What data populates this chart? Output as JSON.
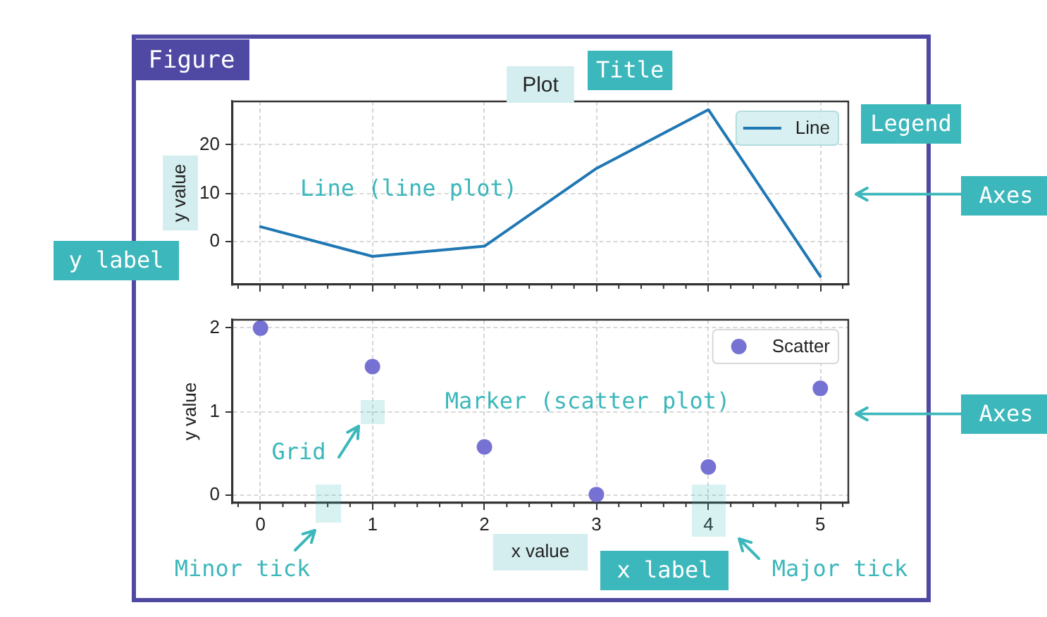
{
  "chart_data": [
    {
      "type": "line",
      "title": "Plot",
      "ylabel": "y value",
      "x": [
        0,
        1,
        2,
        3,
        4,
        5
      ],
      "series": [
        {
          "name": "Line",
          "color": "#1f77b4",
          "values": [
            3.1,
            -3.0,
            -0.9,
            15.1,
            27.2,
            -7.1
          ]
        }
      ],
      "xlim": [
        -0.25,
        5.25
      ],
      "ylim": [
        -8.8,
        28.9
      ],
      "xticks": [
        {
          "value": -0.2,
          "label": null
        },
        0,
        {
          "value": 0.2,
          "label": null
        },
        {
          "value": 0.4,
          "label": null
        },
        {
          "value": 0.6,
          "label": null
        },
        {
          "value": 0.8,
          "label": null
        },
        1,
        {
          "value": 1.2,
          "label": null
        },
        {
          "value": 1.4,
          "label": null
        },
        {
          "value": 1.6,
          "label": null
        },
        {
          "value": 1.8,
          "label": null
        },
        2,
        {
          "value": 2.2,
          "label": null
        },
        {
          "value": 2.4,
          "label": null
        },
        {
          "value": 2.6,
          "label": null
        },
        {
          "value": 2.8,
          "label": null
        },
        3,
        {
          "value": 3.2,
          "label": null
        },
        {
          "value": 3.4,
          "label": null
        },
        {
          "value": 3.6,
          "label": null
        },
        {
          "value": 3.8,
          "label": null
        },
        4,
        {
          "value": 4.2,
          "label": null
        },
        {
          "value": 4.4,
          "label": null
        },
        {
          "value": 4.6,
          "label": null
        },
        {
          "value": 4.8,
          "label": null
        },
        5,
        {
          "value": 5.2,
          "label": null
        }
      ],
      "yticks": [
        0,
        10,
        20
      ],
      "tick_labels": "y",
      "grid": true,
      "legend": "top right",
      "line_style": "solid",
      "annotations": [
        "Figure",
        "Title",
        "Legend",
        "Axes",
        "y label",
        "Line (line plot)"
      ]
    },
    {
      "type": "scatter",
      "xlabel": "x value",
      "ylabel": "y value",
      "x": [
        0,
        1,
        2,
        3,
        4,
        5
      ],
      "series": [
        {
          "name": "Scatter",
          "color": "#7672d3",
          "values": [
            2.0,
            1.54,
            0.58,
            0.01,
            0.34,
            1.28
          ]
        }
      ],
      "xlim": [
        -0.25,
        5.25
      ],
      "ylim": [
        -0.09,
        2.1
      ],
      "xticks": [
        {
          "value": -0.2,
          "label": null
        },
        0,
        {
          "value": 0.2,
          "label": null
        },
        {
          "value": 0.4,
          "label": null
        },
        {
          "value": 0.6,
          "label": null
        },
        {
          "value": 0.8,
          "label": null
        },
        1,
        {
          "value": 1.2,
          "label": null
        },
        {
          "value": 1.4,
          "label": null
        },
        {
          "value": 1.6,
          "label": null
        },
        {
          "value": 1.8,
          "label": null
        },
        2,
        {
          "value": 2.2,
          "label": null
        },
        {
          "value": 2.4,
          "label": null
        },
        {
          "value": 2.6,
          "label": null
        },
        {
          "value": 2.8,
          "label": null
        },
        3,
        {
          "value": 3.2,
          "label": null
        },
        {
          "value": 3.4,
          "label": null
        },
        {
          "value": 3.6,
          "label": null
        },
        {
          "value": 3.8,
          "label": null
        },
        4,
        {
          "value": 4.2,
          "label": null
        },
        {
          "value": 4.4,
          "label": null
        },
        {
          "value": 4.6,
          "label": null
        },
        {
          "value": 4.8,
          "label": null
        },
        5,
        {
          "value": 5.2,
          "label": null
        }
      ],
      "yticks": [
        0,
        1,
        2
      ],
      "grid": true,
      "legend": "top right",
      "marker": "circle",
      "annotations": [
        "Axes",
        "Marker (scatter plot)",
        "Grid",
        "Minor tick",
        "Major tick",
        "x label"
      ]
    }
  ]
}
